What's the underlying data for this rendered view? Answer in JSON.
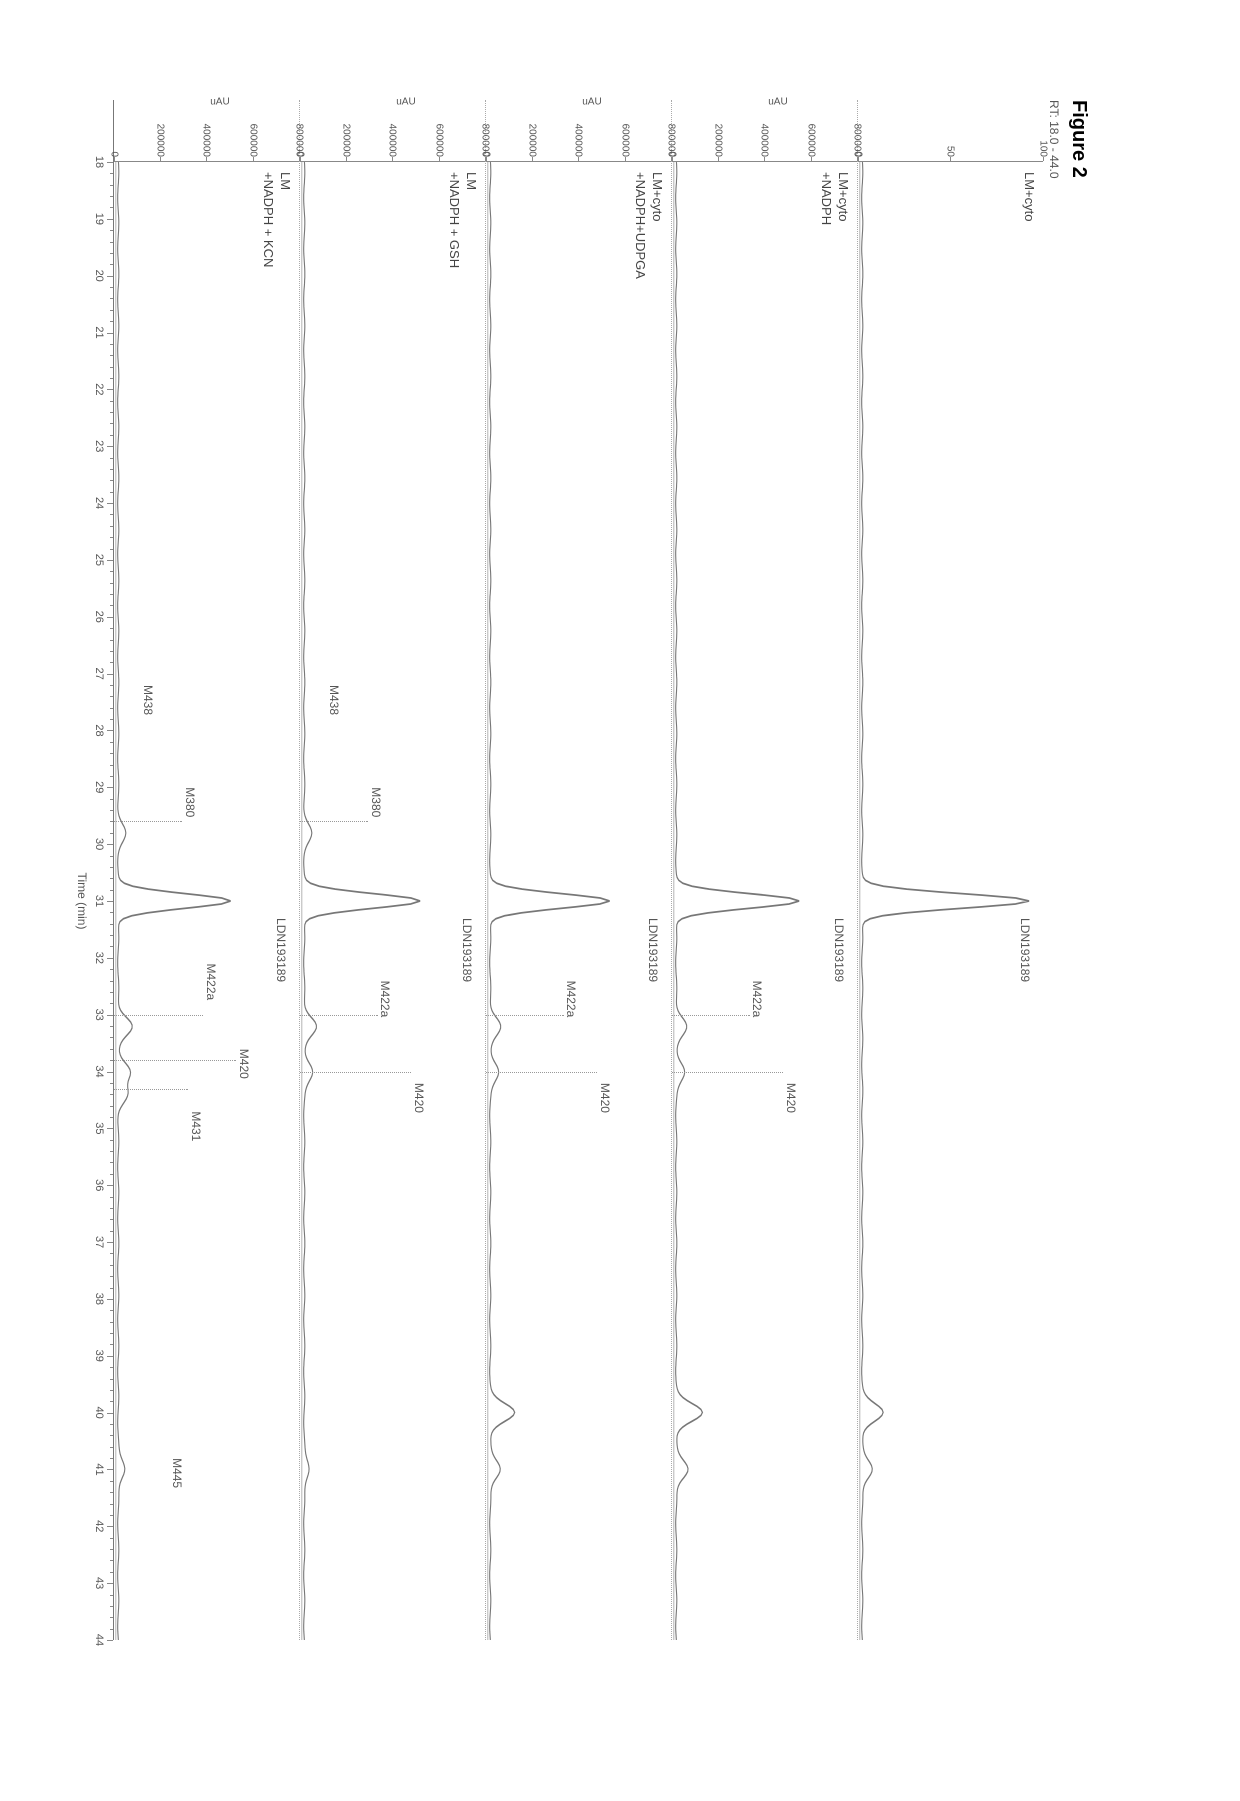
{
  "figure": {
    "title": "Figure 2",
    "rt_range_label": "RT: 18.0 - 44.0",
    "x_axis_title": "Time (min)",
    "x_min": 18,
    "x_max": 44,
    "x_tick_step": 1,
    "colors": {
      "background": "#ffffff",
      "axis": "#888888",
      "trace": "#777777",
      "label": "#555555",
      "dotted": "#aaaaaa"
    },
    "fontsize": {
      "title": 20,
      "axis_label": 12,
      "tick": 11,
      "peak": 12,
      "condition": 13
    }
  },
  "panels": [
    {
      "condition_lines": [
        "LM+cyto"
      ],
      "y_ticks": [
        0,
        50,
        100
      ],
      "y_max": 100,
      "y_unit": "",
      "peaks": [
        {
          "label": "LDN193189",
          "rt": 31.0,
          "label_top_pct": 6,
          "label_rt_offset": 0.3
        }
      ],
      "trace_main_peak_rt": 31.0,
      "trace_main_peak_height": 0.95,
      "minor_bumps": [
        {
          "rt": 40.0,
          "h": 0.12
        },
        {
          "rt": 41.0,
          "h": 0.06
        }
      ]
    },
    {
      "condition_lines": [
        "LM+cyto",
        "+NADPH"
      ],
      "y_ticks": [
        0,
        200000,
        400000,
        600000,
        800000
      ],
      "y_max": 800000,
      "y_unit": "uAU",
      "peaks": [
        {
          "label": "LDN193189",
          "rt": 31.0,
          "label_top_pct": 6,
          "label_rt_offset": 0.3
        },
        {
          "label": "M422a",
          "rt": 33.0,
          "label_top_pct": 50,
          "label_rt_offset": -0.6,
          "leader": true
        },
        {
          "label": "M420",
          "rt": 34.0,
          "label_top_pct": 32,
          "label_rt_offset": 0.2,
          "leader": true
        }
      ],
      "trace_main_peak_rt": 31.0,
      "trace_main_peak_height": 0.7,
      "minor_bumps": [
        {
          "rt": 33.2,
          "h": 0.06
        },
        {
          "rt": 34.0,
          "h": 0.05
        },
        {
          "rt": 40.0,
          "h": 0.15
        },
        {
          "rt": 41.0,
          "h": 0.07
        }
      ]
    },
    {
      "condition_lines": [
        "LM+cyto",
        "+NADPH+UDPGA"
      ],
      "y_ticks": [
        0,
        200000,
        400000,
        600000,
        800000
      ],
      "y_max": 800000,
      "y_unit": "uAU",
      "peaks": [
        {
          "label": "LDN193189",
          "rt": 31.0,
          "label_top_pct": 6,
          "label_rt_offset": 0.3
        },
        {
          "label": "M422a",
          "rt": 33.0,
          "label_top_pct": 50,
          "label_rt_offset": -0.6,
          "leader": true
        },
        {
          "label": "M420",
          "rt": 34.0,
          "label_top_pct": 32,
          "label_rt_offset": 0.2,
          "leader": true
        }
      ],
      "trace_main_peak_rt": 31.0,
      "trace_main_peak_height": 0.68,
      "minor_bumps": [
        {
          "rt": 33.2,
          "h": 0.06
        },
        {
          "rt": 34.0,
          "h": 0.05
        },
        {
          "rt": 40.0,
          "h": 0.14
        },
        {
          "rt": 41.0,
          "h": 0.06
        }
      ]
    },
    {
      "condition_lines": [
        "LM",
        "+NADPH + GSH"
      ],
      "y_ticks": [
        0,
        200000,
        400000,
        600000,
        800000
      ],
      "y_max": 800000,
      "y_unit": "uAU",
      "peaks": [
        {
          "label": "LDN193189",
          "rt": 31.0,
          "label_top_pct": 6,
          "label_rt_offset": 0.3
        },
        {
          "label": "M438",
          "rt": 28.0,
          "label_top_pct": 78,
          "label_rt_offset": -0.8
        },
        {
          "label": "M380",
          "rt": 29.6,
          "label_top_pct": 55,
          "label_rt_offset": -0.6,
          "leader": true
        },
        {
          "label": "M422a",
          "rt": 33.0,
          "label_top_pct": 50,
          "label_rt_offset": -0.6,
          "leader": true
        },
        {
          "label": "M420",
          "rt": 34.0,
          "label_top_pct": 32,
          "label_rt_offset": 0.2,
          "leader": true
        }
      ],
      "trace_main_peak_rt": 31.0,
      "trace_main_peak_height": 0.66,
      "minor_bumps": [
        {
          "rt": 29.8,
          "h": 0.04
        },
        {
          "rt": 33.2,
          "h": 0.07
        },
        {
          "rt": 34.0,
          "h": 0.05
        },
        {
          "rt": 41.0,
          "h": 0.03
        }
      ]
    },
    {
      "condition_lines": [
        "LM",
        "+NADPH + KCN"
      ],
      "y_ticks": [
        0,
        200000,
        400000,
        600000,
        800000
      ],
      "y_max": 800000,
      "y_unit": "uAU",
      "peaks": [
        {
          "label": "LDN193189",
          "rt": 31.0,
          "label_top_pct": 6,
          "label_rt_offset": 0.3
        },
        {
          "label": "M438",
          "rt": 28.0,
          "label_top_pct": 78,
          "label_rt_offset": -0.8
        },
        {
          "label": "M380",
          "rt": 29.6,
          "label_top_pct": 55,
          "label_rt_offset": -0.6,
          "leader": true
        },
        {
          "label": "M422a",
          "rt": 33.0,
          "label_top_pct": 44,
          "label_rt_offset": -0.9,
          "leader": true
        },
        {
          "label": "M420",
          "rt": 33.8,
          "label_top_pct": 26,
          "label_rt_offset": -0.2,
          "leader": true
        },
        {
          "label": "M431",
          "rt": 34.3,
          "label_top_pct": 52,
          "label_rt_offset": 0.4,
          "leader": true
        },
        {
          "label": "M445",
          "rt": 41.0,
          "label_top_pct": 62,
          "label_rt_offset": -0.2
        }
      ],
      "trace_main_peak_rt": 31.0,
      "trace_main_peak_height": 0.64,
      "minor_bumps": [
        {
          "rt": 29.8,
          "h": 0.04
        },
        {
          "rt": 33.2,
          "h": 0.08
        },
        {
          "rt": 34.0,
          "h": 0.07
        },
        {
          "rt": 34.4,
          "h": 0.05
        },
        {
          "rt": 41.0,
          "h": 0.04
        }
      ]
    }
  ]
}
